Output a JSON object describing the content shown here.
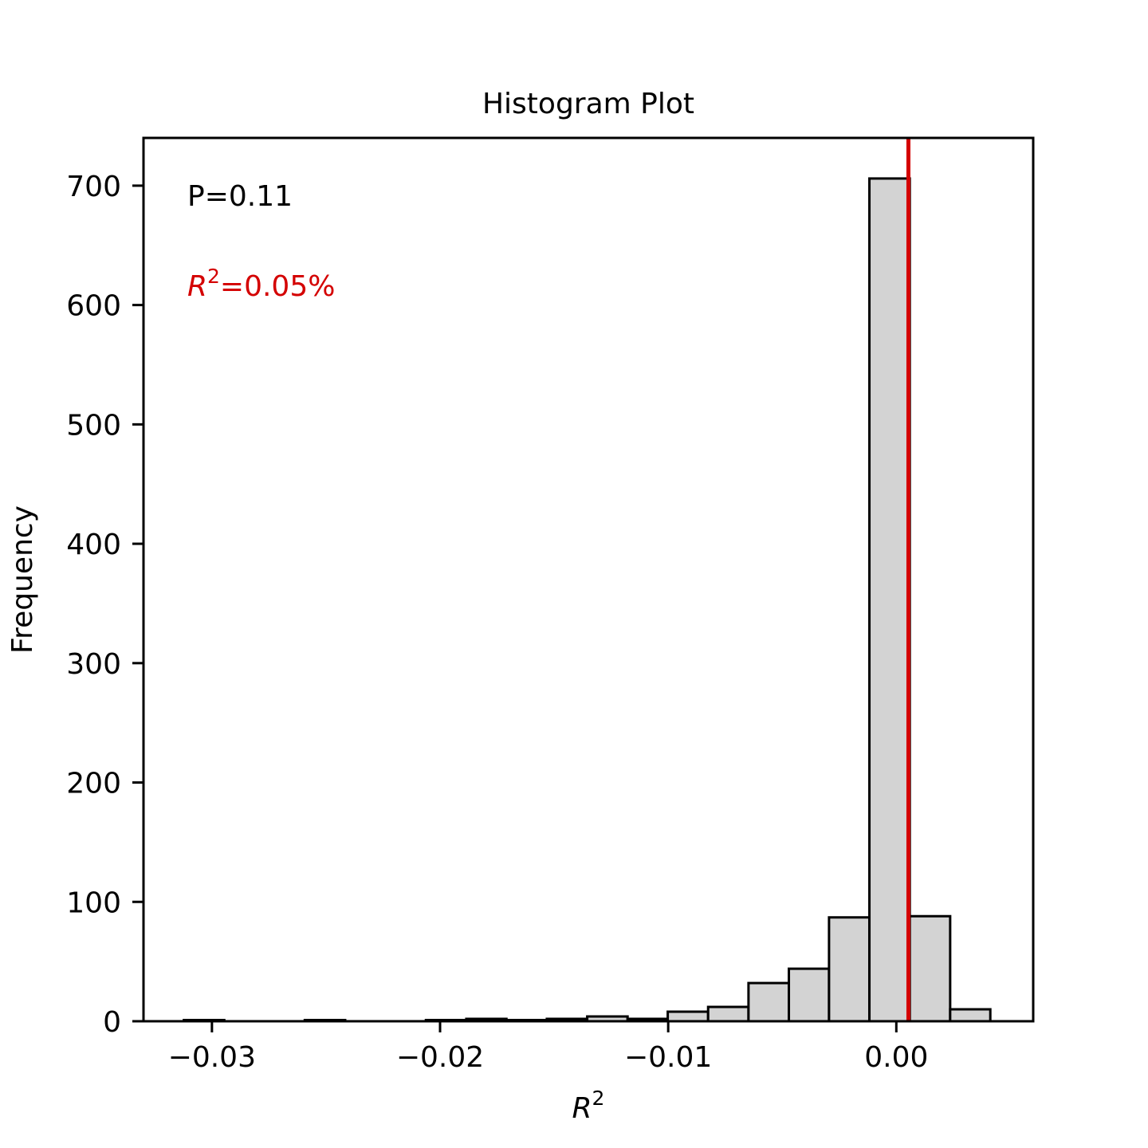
{
  "chart_data": {
    "type": "bar",
    "title": "Histogram Plot",
    "xlabel": "R",
    "xlabel_superscript": "2",
    "ylabel": "Frequency",
    "xlim": [
      -0.033,
      0.006
    ],
    "ylim": [
      0,
      740
    ],
    "xticks": [
      {
        "value": -0.03,
        "label": "−0.03"
      },
      {
        "value": -0.02,
        "label": "−0.02"
      },
      {
        "value": -0.01,
        "label": "−0.01"
      },
      {
        "value": 0.0,
        "label": "0.00"
      }
    ],
    "yticks": [
      {
        "value": 0,
        "label": "0"
      },
      {
        "value": 100,
        "label": "100"
      },
      {
        "value": 200,
        "label": "200"
      },
      {
        "value": 300,
        "label": "300"
      },
      {
        "value": 400,
        "label": "400"
      },
      {
        "value": 500,
        "label": "500"
      },
      {
        "value": 600,
        "label": "600"
      },
      {
        "value": 700,
        "label": "700"
      }
    ],
    "bins": [
      {
        "left": -0.03123,
        "right": -0.02946,
        "count": 1
      },
      {
        "left": -0.02946,
        "right": -0.02769,
        "count": 0
      },
      {
        "left": -0.02769,
        "right": -0.02593,
        "count": 0
      },
      {
        "left": -0.02593,
        "right": -0.02416,
        "count": 1
      },
      {
        "left": -0.02416,
        "right": -0.02239,
        "count": 0
      },
      {
        "left": -0.02239,
        "right": -0.02062,
        "count": 0
      },
      {
        "left": -0.02062,
        "right": -0.01885,
        "count": 1
      },
      {
        "left": -0.01885,
        "right": -0.01709,
        "count": 2
      },
      {
        "left": -0.01709,
        "right": -0.01532,
        "count": 1
      },
      {
        "left": -0.01532,
        "right": -0.01355,
        "count": 2
      },
      {
        "left": -0.01355,
        "right": -0.01178,
        "count": 4
      },
      {
        "left": -0.01178,
        "right": -0.01002,
        "count": 2
      },
      {
        "left": -0.01002,
        "right": -0.00825,
        "count": 8
      },
      {
        "left": -0.00825,
        "right": -0.00648,
        "count": 12
      },
      {
        "left": -0.00648,
        "right": -0.00471,
        "count": 32
      },
      {
        "left": -0.00471,
        "right": -0.00295,
        "count": 44
      },
      {
        "left": -0.00295,
        "right": -0.00118,
        "count": 87
      },
      {
        "left": -0.00118,
        "right": 0.00059,
        "count": 706
      },
      {
        "left": 0.00059,
        "right": 0.00236,
        "count": 88
      },
      {
        "left": 0.00236,
        "right": 0.00412,
        "count": 10
      }
    ],
    "observed_value": 0.00053,
    "observed_color": "#d40000",
    "bar_fill": "#d3d3d3",
    "bar_edge": "#000000",
    "grid": false,
    "annotations": {
      "p_text": "P=0.11",
      "r2_prefix": "R",
      "r2_superscript": "2",
      "r2_value_text": "=0.05%",
      "r2_color": "#d40000"
    }
  }
}
